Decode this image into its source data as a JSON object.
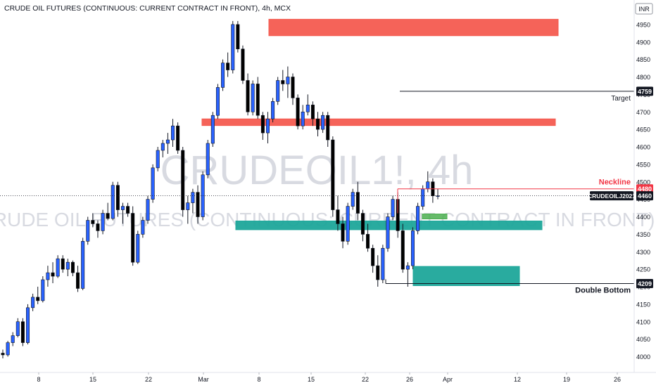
{
  "header": {
    "symbol_title": "CRUDE OIL FUTURES (CONTINUOUS: CURRENT CONTRACT IN FRONT), 4h, MCX",
    "currency": "INR"
  },
  "watermark": {
    "ticker": "CRUDEOIL1!, 4h",
    "name": "CRUDE OIL FUTURES (CONTINUOUS: CURRENT CONTRACT IN FRONT)"
  },
  "colors": {
    "up": "#2962ff",
    "down": "#000000",
    "supply_zone": "#f45b50",
    "demand_zone": "#1ea79a",
    "small_zone": "#4caf50",
    "neckline": "#f23645",
    "last_price_label_bg": "#131722",
    "neckline_label_bg": "#f23645",
    "level_label_bg": "#131722"
  },
  "chart_data": {
    "type": "candlestick",
    "interval": "4h",
    "y_axis": {
      "position": "right",
      "ylim": [
        3970,
        4975
      ],
      "ticks": [
        4000,
        4050,
        4100,
        4150,
        4200,
        4250,
        4300,
        4350,
        4400,
        4450,
        4500,
        4550,
        4600,
        4650,
        4700,
        4750,
        4800,
        4850,
        4900,
        4950
      ]
    },
    "x_axis": {
      "tick_labels": [
        "8",
        "15",
        "22",
        "Mar",
        "8",
        "15",
        "22",
        "26",
        "Apr",
        "12",
        "19",
        "26"
      ]
    },
    "candles": [
      [
        4010,
        4020,
        3995,
        4005
      ],
      [
        4005,
        4045,
        4000,
        4040
      ],
      [
        4040,
        4070,
        4030,
        4060
      ],
      [
        4060,
        4110,
        4055,
        4100
      ],
      [
        4100,
        4110,
        4030,
        4040
      ],
      [
        4040,
        4150,
        4035,
        4140
      ],
      [
        4140,
        4180,
        4130,
        4170
      ],
      [
        4170,
        4200,
        4150,
        4160
      ],
      [
        4160,
        4230,
        4155,
        4220
      ],
      [
        4220,
        4260,
        4200,
        4240
      ],
      [
        4240,
        4270,
        4210,
        4230
      ],
      [
        4230,
        4290,
        4225,
        4280
      ],
      [
        4280,
        4290,
        4240,
        4250
      ],
      [
        4250,
        4280,
        4230,
        4270
      ],
      [
        4270,
        4275,
        4230,
        4240
      ],
      [
        4240,
        4260,
        4185,
        4195
      ],
      [
        4195,
        4340,
        4190,
        4330
      ],
      [
        4330,
        4400,
        4320,
        4390
      ],
      [
        4390,
        4410,
        4370,
        4380
      ],
      [
        4380,
        4390,
        4340,
        4360
      ],
      [
        4360,
        4420,
        4350,
        4410
      ],
      [
        4410,
        4440,
        4390,
        4395
      ],
      [
        4395,
        4500,
        4390,
        4490
      ],
      [
        4490,
        4500,
        4400,
        4420
      ],
      [
        4420,
        4440,
        4380,
        4430
      ],
      [
        4430,
        4440,
        4400,
        4410
      ],
      [
        4410,
        4430,
        4260,
        4270
      ],
      [
        4270,
        4360,
        4265,
        4350
      ],
      [
        4350,
        4400,
        4340,
        4390
      ],
      [
        4390,
        4460,
        4380,
        4450
      ],
      [
        4450,
        4550,
        4440,
        4540
      ],
      [
        4540,
        4600,
        4530,
        4590
      ],
      [
        4590,
        4620,
        4570,
        4610
      ],
      [
        4610,
        4640,
        4580,
        4620
      ],
      [
        4620,
        4680,
        4600,
        4660
      ],
      [
        4660,
        4670,
        4580,
        4590
      ],
      [
        4590,
        4600,
        4400,
        4420
      ],
      [
        4420,
        4460,
        4380,
        4440
      ],
      [
        4440,
        4480,
        4410,
        4470
      ],
      [
        4470,
        4490,
        4380,
        4400
      ],
      [
        4400,
        4530,
        4390,
        4520
      ],
      [
        4520,
        4620,
        4510,
        4610
      ],
      [
        4610,
        4700,
        4600,
        4690
      ],
      [
        4690,
        4780,
        4680,
        4770
      ],
      [
        4770,
        4850,
        4760,
        4840
      ],
      [
        4840,
        4870,
        4800,
        4820
      ],
      [
        4820,
        4960,
        4810,
        4950
      ],
      [
        4950,
        4960,
        4870,
        4880
      ],
      [
        4880,
        4890,
        4780,
        4790
      ],
      [
        4790,
        4810,
        4690,
        4700
      ],
      [
        4700,
        4790,
        4690,
        4780
      ],
      [
        4780,
        4800,
        4680,
        4690
      ],
      [
        4690,
        4700,
        4620,
        4640
      ],
      [
        4640,
        4700,
        4610,
        4680
      ],
      [
        4680,
        4740,
        4670,
        4730
      ],
      [
        4730,
        4800,
        4720,
        4790
      ],
      [
        4790,
        4820,
        4760,
        4780
      ],
      [
        4780,
        4830,
        4740,
        4800
      ],
      [
        4800,
        4810,
        4720,
        4740
      ],
      [
        4740,
        4750,
        4650,
        4660
      ],
      [
        4660,
        4720,
        4650,
        4700
      ],
      [
        4700,
        4750,
        4690,
        4720
      ],
      [
        4720,
        4730,
        4660,
        4680
      ],
      [
        4680,
        4700,
        4630,
        4650
      ],
      [
        4650,
        4700,
        4640,
        4690
      ],
      [
        4690,
        4700,
        4600,
        4620
      ],
      [
        4620,
        4630,
        4400,
        4420
      ],
      [
        4420,
        4460,
        4360,
        4380
      ],
      [
        4380,
        4400,
        4310,
        4330
      ],
      [
        4330,
        4440,
        4320,
        4430
      ],
      [
        4430,
        4480,
        4420,
        4470
      ],
      [
        4470,
        4500,
        4390,
        4410
      ],
      [
        4410,
        4420,
        4330,
        4350
      ],
      [
        4350,
        4380,
        4300,
        4310
      ],
      [
        4310,
        4320,
        4240,
        4260
      ],
      [
        4260,
        4290,
        4200,
        4220
      ],
      [
        4220,
        4320,
        4210,
        4310
      ],
      [
        4310,
        4410,
        4300,
        4400
      ],
      [
        4400,
        4460,
        4390,
        4450
      ],
      [
        4450,
        4470,
        4340,
        4360
      ],
      [
        4360,
        4380,
        4240,
        4250
      ],
      [
        4250,
        4270,
        4200,
        4260
      ],
      [
        4260,
        4370,
        4250,
        4360
      ],
      [
        4360,
        4440,
        4350,
        4430
      ],
      [
        4430,
        4490,
        4420,
        4480
      ],
      [
        4480,
        4530,
        4470,
        4500
      ],
      [
        4500,
        4510,
        4440,
        4460
      ],
      [
        4460,
        4480,
        4450,
        4460
      ]
    ],
    "zones": [
      {
        "kind": "supply",
        "top": 4965,
        "bottom": 4918
      },
      {
        "kind": "supply",
        "top": 4680,
        "bottom": 4661
      },
      {
        "kind": "demand",
        "top": 4388,
        "bottom": 4363
      },
      {
        "kind": "demand",
        "top": 4258,
        "bottom": 4203
      },
      {
        "kind": "small",
        "top": 4408,
        "bottom": 4394
      }
    ],
    "levels": [
      {
        "label": "Target",
        "value": 4759,
        "tag": "4759"
      },
      {
        "label": "Neckline",
        "value": 4480,
        "tag": "4480"
      },
      {
        "label": "Double Bottom",
        "value": 4209,
        "tag": "4209"
      }
    ],
    "last_price": {
      "value": 4460,
      "tag": "4460",
      "symbol": "CRUDEOILJ2021"
    }
  }
}
